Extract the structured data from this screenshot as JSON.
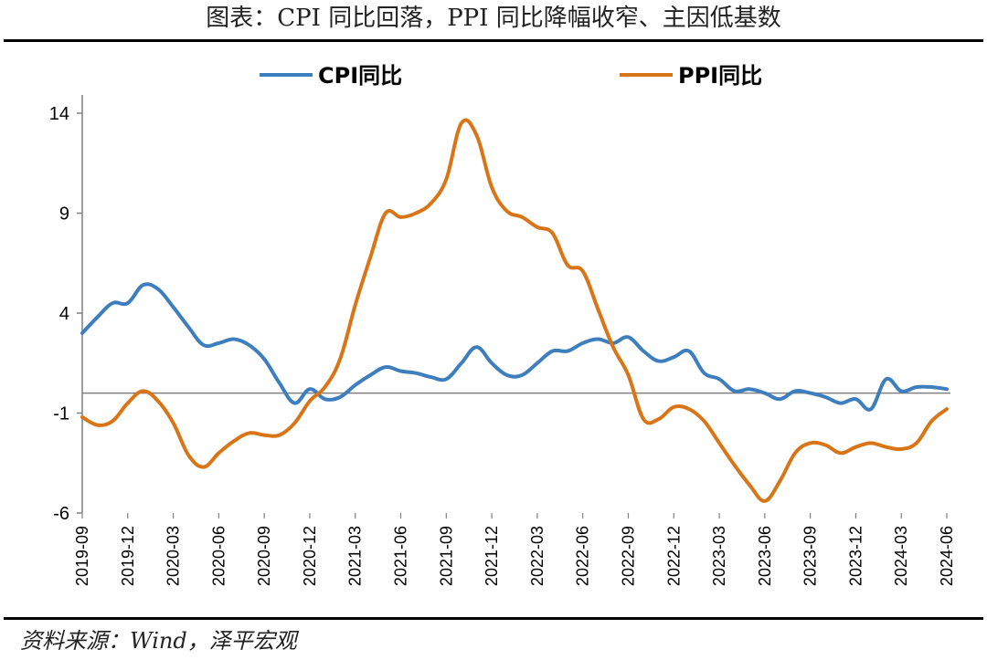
{
  "title": "图表：CPI 同比回落，PPI 同比降幅收窄、主因低基数",
  "source": "资料来源：Wind，泽平宏观",
  "chart_data": {
    "type": "line",
    "ylim": [
      -6,
      14
    ],
    "yticks": [
      14,
      9,
      4,
      -1,
      -6
    ],
    "x_tick_labels": [
      "2019-09",
      "2019-12",
      "2020-03",
      "2020-06",
      "2020-09",
      "2020-12",
      "2021-03",
      "2021-06",
      "2021-09",
      "2021-12",
      "2022-03",
      "2022-06",
      "2022-09",
      "2022-12",
      "2023-03",
      "2023-06",
      "2023-09",
      "2023-12",
      "2024-03",
      "2024-06"
    ],
    "legend_position": "top",
    "x": [
      "2019-09",
      "2019-10",
      "2019-11",
      "2019-12",
      "2020-01",
      "2020-02",
      "2020-03",
      "2020-04",
      "2020-05",
      "2020-06",
      "2020-07",
      "2020-08",
      "2020-09",
      "2020-10",
      "2020-11",
      "2020-12",
      "2021-01",
      "2021-02",
      "2021-03",
      "2021-04",
      "2021-05",
      "2021-06",
      "2021-07",
      "2021-08",
      "2021-09",
      "2021-10",
      "2021-11",
      "2021-12",
      "2022-01",
      "2022-02",
      "2022-03",
      "2022-04",
      "2022-05",
      "2022-06",
      "2022-07",
      "2022-08",
      "2022-09",
      "2022-10",
      "2022-11",
      "2022-12",
      "2023-01",
      "2023-02",
      "2023-03",
      "2023-04",
      "2023-05",
      "2023-06",
      "2023-07",
      "2023-08",
      "2023-09",
      "2023-10",
      "2023-11",
      "2023-12",
      "2024-01",
      "2024-02",
      "2024-03",
      "2024-04",
      "2024-05",
      "2024-06"
    ],
    "series": [
      {
        "name": "CPI同比",
        "color": "#3d7ebf",
        "values": [
          3.0,
          3.8,
          4.5,
          4.5,
          5.4,
          5.2,
          4.3,
          3.3,
          2.4,
          2.5,
          2.7,
          2.4,
          1.7,
          0.5,
          -0.5,
          0.2,
          -0.3,
          -0.2,
          0.4,
          0.9,
          1.3,
          1.1,
          1.0,
          0.8,
          0.7,
          1.5,
          2.3,
          1.5,
          0.9,
          0.9,
          1.5,
          2.1,
          2.1,
          2.5,
          2.7,
          2.5,
          2.8,
          2.1,
          1.6,
          1.8,
          2.1,
          1.0,
          0.7,
          0.1,
          0.2,
          0.0,
          -0.3,
          0.1,
          0.0,
          -0.2,
          -0.5,
          -0.3,
          -0.8,
          0.7,
          0.1,
          0.3,
          0.3,
          0.2
        ]
      },
      {
        "name": "PPI同比",
        "color": "#d97517",
        "values": [
          -1.2,
          -1.6,
          -1.4,
          -0.5,
          0.1,
          -0.4,
          -1.5,
          -3.1,
          -3.7,
          -3.0,
          -2.4,
          -2.0,
          -2.1,
          -2.1,
          -1.5,
          -0.4,
          0.3,
          1.7,
          4.4,
          6.8,
          9.0,
          8.8,
          9.0,
          9.5,
          10.7,
          13.5,
          12.9,
          10.3,
          9.1,
          8.8,
          8.3,
          8.0,
          6.4,
          6.1,
          4.2,
          2.3,
          0.9,
          -1.3,
          -1.3,
          -0.7,
          -0.8,
          -1.4,
          -2.5,
          -3.6,
          -4.6,
          -5.4,
          -4.4,
          -3.0,
          -2.5,
          -2.6,
          -3.0,
          -2.7,
          -2.5,
          -2.7,
          -2.8,
          -2.5,
          -1.4,
          -0.8
        ]
      }
    ]
  }
}
